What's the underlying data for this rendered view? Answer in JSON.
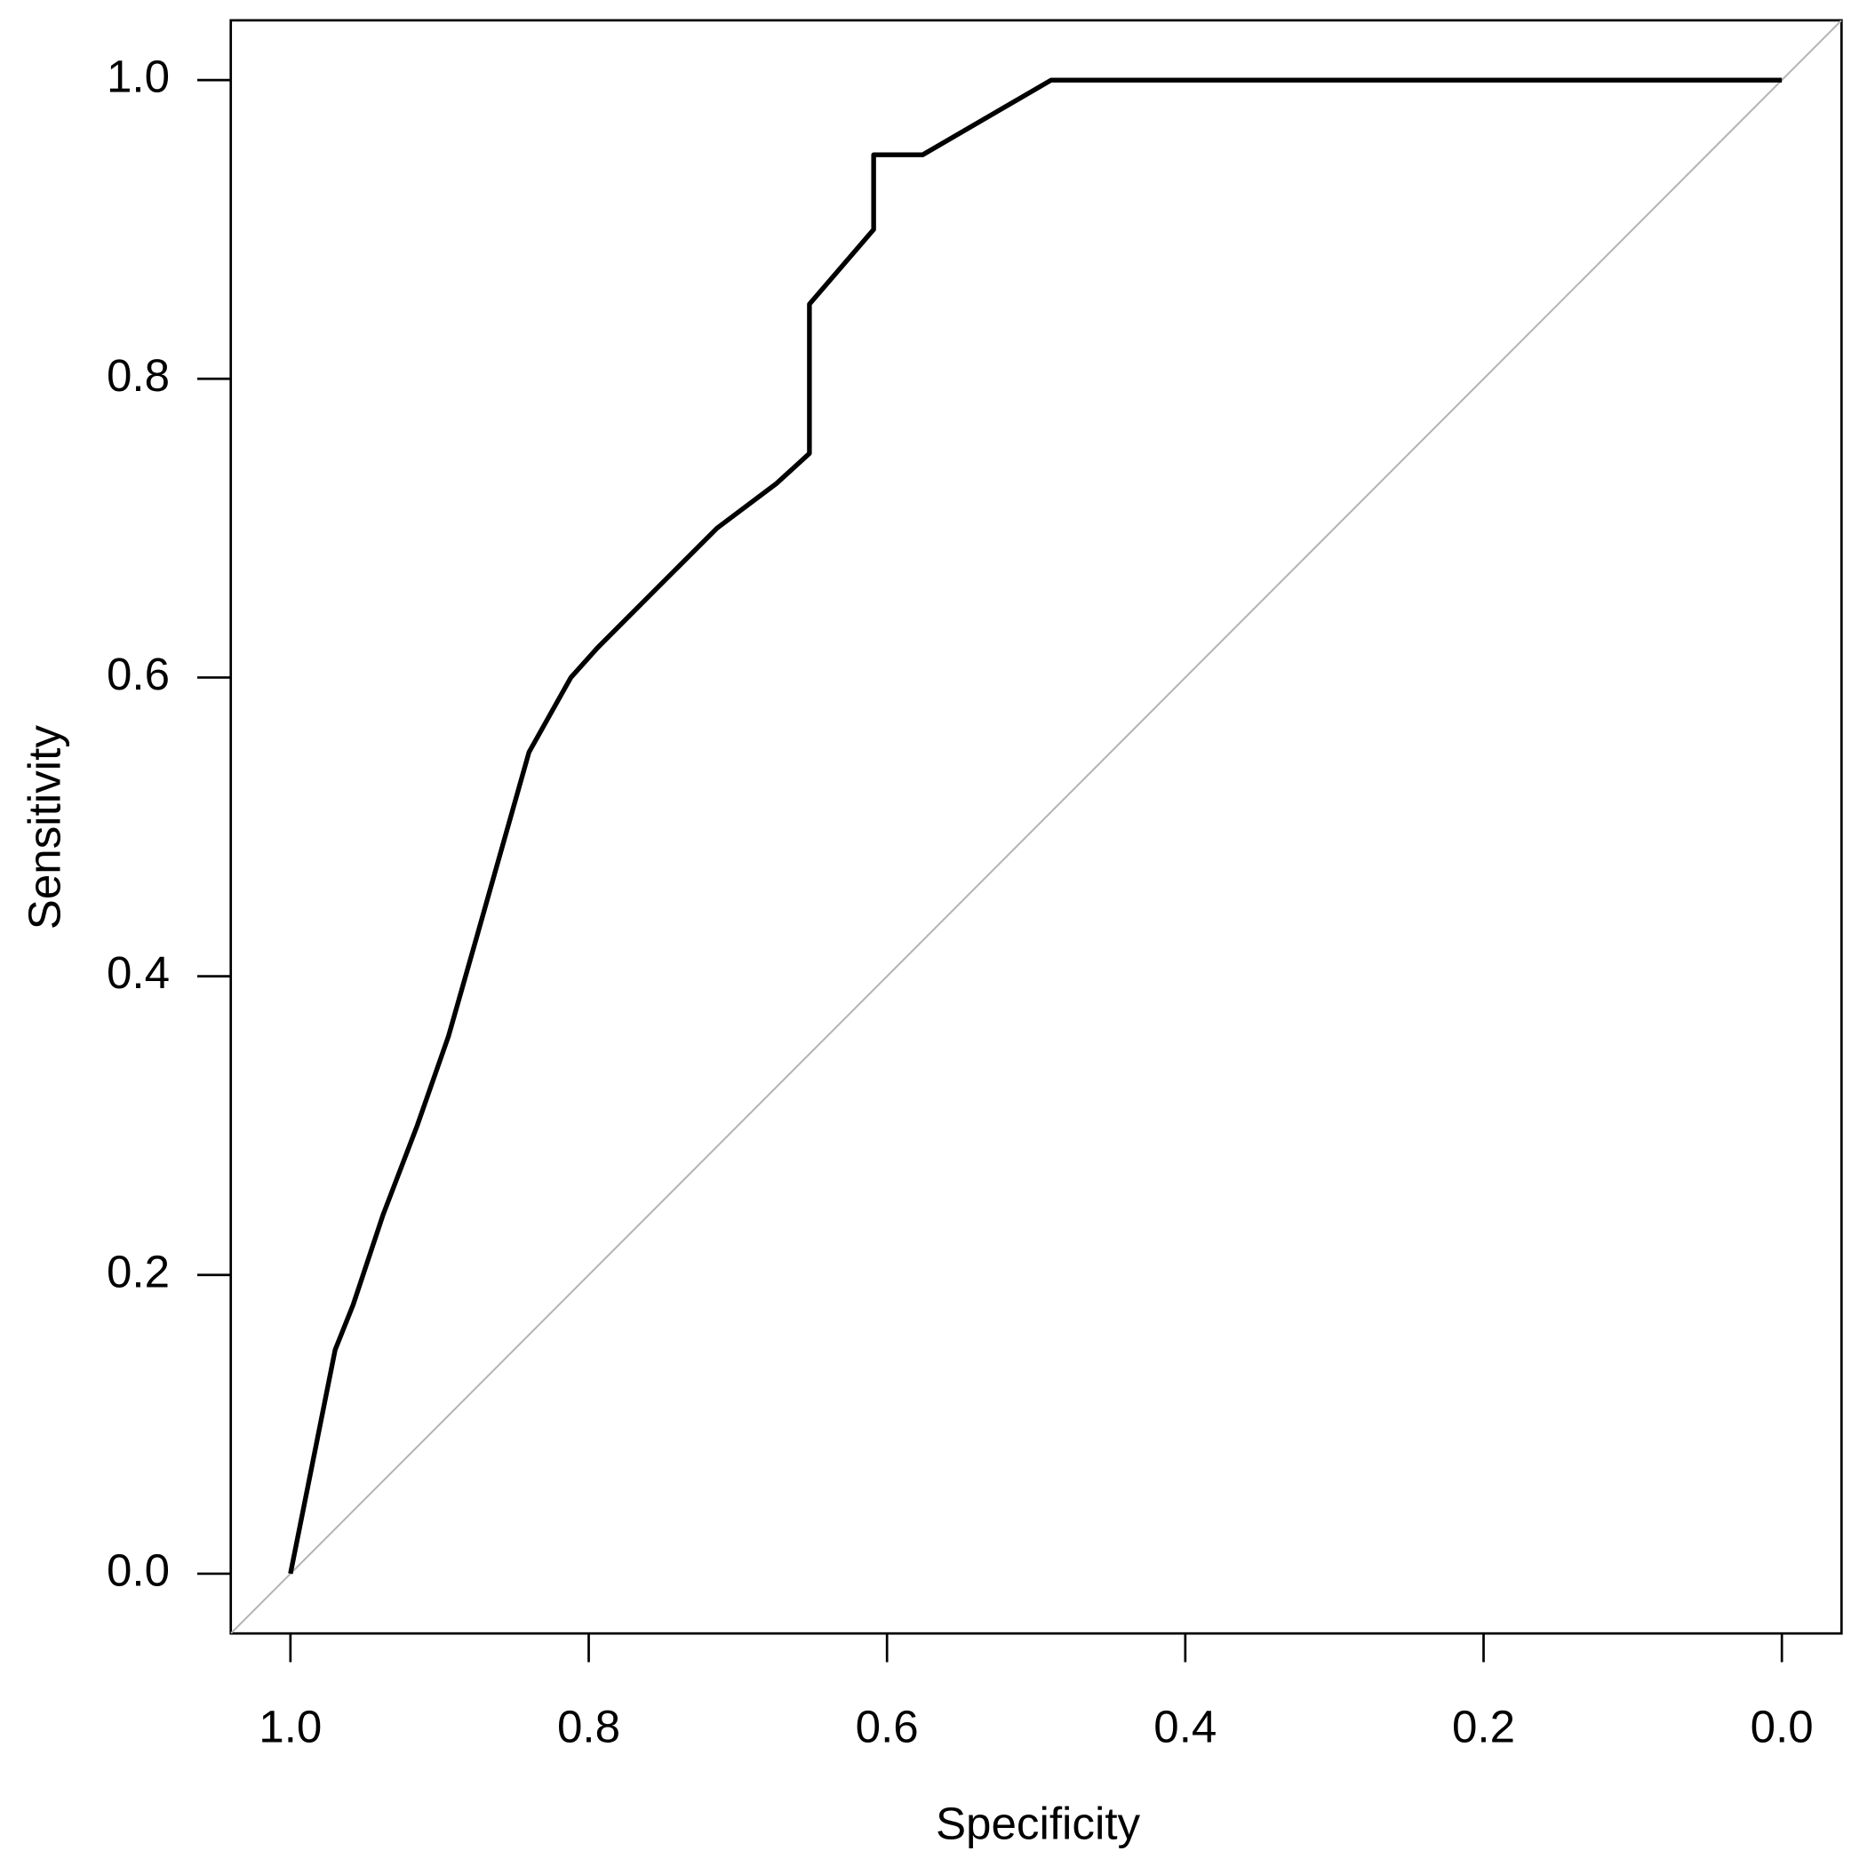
{
  "chart_data": {
    "type": "line",
    "x_label": "Specificity",
    "y_label": "Sensitivity",
    "x": [
      1.0,
      0.97,
      0.958,
      0.938,
      0.915,
      0.894,
      0.874,
      0.84,
      0.812,
      0.794,
      0.754,
      0.714,
      0.674,
      0.652,
      0.652,
      0.609,
      0.609,
      0.576,
      0.49,
      0.0
    ],
    "values": [
      0.0,
      0.15,
      0.18,
      0.24,
      0.3,
      0.36,
      0.43,
      0.55,
      0.6,
      0.62,
      0.66,
      0.7,
      0.73,
      0.75,
      0.85,
      0.9,
      0.95,
      0.95,
      1.0,
      1.0
    ],
    "color": "#000000",
    "xlim": [
      1.04,
      -0.04
    ],
    "ylim": [
      -0.04,
      1.04
    ],
    "xticks": [
      {
        "value": 1,
        "label": "1.0"
      },
      0.8,
      0.6,
      0.4,
      0.2,
      {
        "value": 0,
        "label": "0.0"
      }
    ],
    "yticks": [
      {
        "value": 0,
        "label": "0.0"
      },
      0.2,
      0.4,
      0.6,
      0.8,
      {
        "value": 1,
        "label": "1.0"
      }
    ],
    "diagonal": true,
    "diagonal_color": "#b4b4b4"
  }
}
